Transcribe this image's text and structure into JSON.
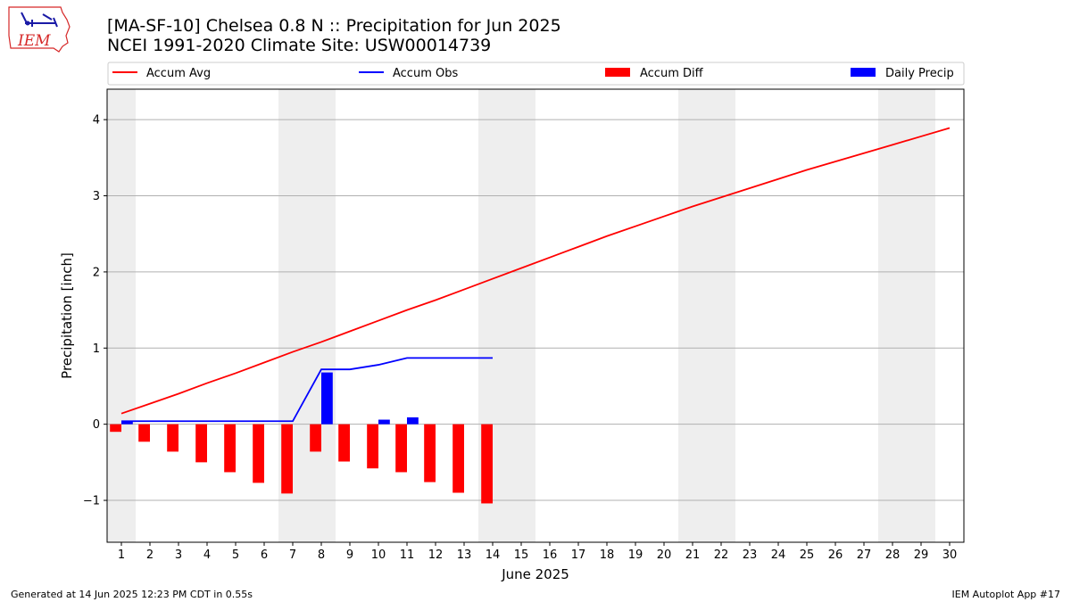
{
  "title_line1": "[MA-SF-10] Chelsea 0.8 N :: Precipitation for Jun 2025",
  "title_line2": "NCEI 1991-2020 Climate Site: USW00014739",
  "footer_left": "Generated at 14 Jun 2025 12:23 PM CDT in 0.55s",
  "footer_right": "IEM Autoplot App #17",
  "logo_text": "IEM",
  "colors": {
    "avg": "#ff0000",
    "obs": "#0000ff",
    "diff": "#ff0000",
    "daily": "#0000ff",
    "weekend_band": "#eeeeee",
    "grid": "#b0b0b0"
  },
  "chart_data": {
    "type": "bar",
    "xlabel": "June 2025",
    "ylabel": "Precipitation [inch]",
    "xlim": [
      0.5,
      30.5
    ],
    "ylim": [
      -1.55,
      4.4
    ],
    "yticks": [
      -1,
      0,
      1,
      2,
      3,
      4
    ],
    "ytick_labels": [
      "−1",
      "0",
      "1",
      "2",
      "3",
      "4"
    ],
    "grid": "horizontal",
    "legend_position": "top",
    "days": [
      1,
      2,
      3,
      4,
      5,
      6,
      7,
      8,
      9,
      10,
      11,
      12,
      13,
      14,
      15,
      16,
      17,
      18,
      19,
      20,
      21,
      22,
      23,
      24,
      25,
      26,
      27,
      28,
      29,
      30
    ],
    "weekend_bands": [
      [
        0.5,
        1.5
      ],
      [
        6.5,
        8.5
      ],
      [
        13.5,
        15.5
      ],
      [
        20.5,
        22.5
      ],
      [
        27.5,
        29.5
      ]
    ],
    "series": [
      {
        "name": "Accum Avg",
        "kind": "line",
        "values": [
          0.14,
          0.27,
          0.4,
          0.54,
          0.67,
          0.81,
          0.95,
          1.08,
          1.22,
          1.36,
          1.5,
          1.63,
          1.77,
          1.91,
          2.05,
          2.19,
          2.33,
          2.47,
          2.6,
          2.73,
          2.86,
          2.98,
          3.1,
          3.22,
          3.34,
          3.45,
          3.56,
          3.67,
          3.78,
          3.89
        ]
      },
      {
        "name": "Accum Obs",
        "kind": "line",
        "values": [
          0.04,
          0.04,
          0.04,
          0.04,
          0.04,
          0.04,
          0.04,
          0.72,
          0.72,
          0.78,
          0.87,
          0.87,
          0.87,
          0.87
        ]
      },
      {
        "name": "Accum Diff",
        "kind": "bar",
        "values": [
          -0.1,
          -0.23,
          -0.36,
          -0.5,
          -0.63,
          -0.77,
          -0.91,
          -0.36,
          -0.49,
          -0.58,
          -0.63,
          -0.76,
          -0.9,
          -1.04
        ]
      },
      {
        "name": "Daily Precip",
        "kind": "bar",
        "values": [
          0.04,
          0,
          0,
          0,
          0,
          0,
          0,
          0.68,
          0,
          0.06,
          0.09,
          0,
          0,
          0
        ]
      }
    ]
  }
}
